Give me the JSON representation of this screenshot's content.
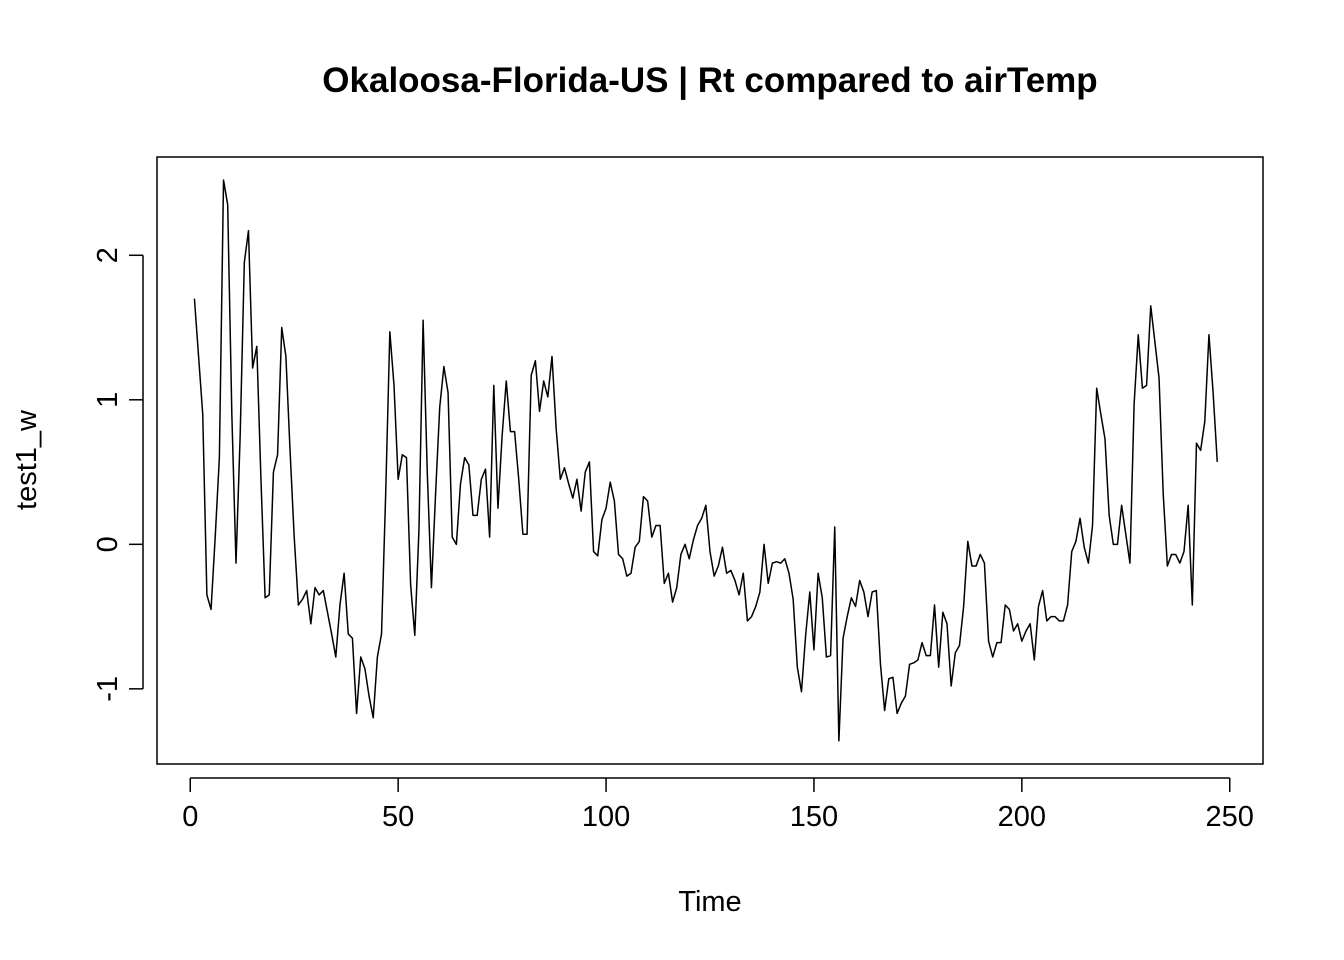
{
  "chart_data": {
    "type": "line",
    "title": "Okaloosa-Florida-US | Rt compared to airTemp",
    "xlabel": "Time",
    "ylabel": "test1_w",
    "xlim": [
      -8,
      258
    ],
    "ylim": [
      -1.52,
      2.68
    ],
    "x_ticks": [
      0,
      50,
      100,
      150,
      200,
      250
    ],
    "x_tick_labels": [
      "0",
      "50",
      "100",
      "150",
      "200",
      "250"
    ],
    "y_ticks": [
      -1,
      0,
      1,
      2
    ],
    "y_tick_labels": [
      "-1",
      "0",
      "1",
      "2"
    ],
    "grid": false,
    "legend": "none",
    "line_color": "#000000",
    "x_start": 1,
    "series": [
      {
        "values": [
          1.7,
          1.3,
          0.9,
          -0.35,
          -0.45,
          0.05,
          0.6,
          2.52,
          2.35,
          0.9,
          -0.13,
          0.75,
          1.95,
          2.17,
          1.22,
          1.37,
          0.45,
          -0.37,
          -0.35,
          0.5,
          0.62,
          1.5,
          1.3,
          0.65,
          0.05,
          -0.42,
          -0.38,
          -0.32,
          -0.55,
          -0.3,
          -0.35,
          -0.32,
          -0.47,
          -0.62,
          -0.78,
          -0.42,
          -0.2,
          -0.62,
          -0.65,
          -1.17,
          -0.78,
          -0.86,
          -1.05,
          -1.2,
          -0.78,
          -0.62,
          0.35,
          1.47,
          1.1,
          0.45,
          0.62,
          0.6,
          -0.28,
          -0.63,
          0.1,
          1.55,
          0.5,
          -0.3,
          0.35,
          0.95,
          1.23,
          1.05,
          0.05,
          0.0,
          0.42,
          0.6,
          0.55,
          0.2,
          0.2,
          0.45,
          0.52,
          0.05,
          1.1,
          0.25,
          0.75,
          1.13,
          0.78,
          0.78,
          0.45,
          0.07,
          0.07,
          1.17,
          1.27,
          0.92,
          1.13,
          1.02,
          1.3,
          0.8,
          0.45,
          0.53,
          0.42,
          0.32,
          0.45,
          0.23,
          0.5,
          0.57,
          -0.05,
          -0.08,
          0.17,
          0.25,
          0.43,
          0.3,
          -0.07,
          -0.1,
          -0.22,
          -0.2,
          -0.02,
          0.02,
          0.33,
          0.3,
          0.05,
          0.13,
          0.13,
          -0.27,
          -0.2,
          -0.4,
          -0.3,
          -0.07,
          0.0,
          -0.1,
          0.03,
          0.13,
          0.18,
          0.27,
          -0.05,
          -0.22,
          -0.15,
          -0.02,
          -0.2,
          -0.18,
          -0.25,
          -0.35,
          -0.2,
          -0.53,
          -0.5,
          -0.43,
          -0.33,
          0.0,
          -0.27,
          -0.13,
          -0.12,
          -0.13,
          -0.1,
          -0.2,
          -0.38,
          -0.85,
          -1.02,
          -0.63,
          -0.33,
          -0.73,
          -0.2,
          -0.37,
          -0.78,
          -0.77,
          0.12,
          -1.36,
          -0.65,
          -0.5,
          -0.37,
          -0.43,
          -0.25,
          -0.33,
          -0.5,
          -0.33,
          -0.32,
          -0.83,
          -1.15,
          -0.93,
          -0.92,
          -1.17,
          -1.1,
          -1.05,
          -0.83,
          -0.82,
          -0.8,
          -0.68,
          -0.77,
          -0.77,
          -0.42,
          -0.85,
          -0.47,
          -0.55,
          -0.98,
          -0.75,
          -0.7,
          -0.43,
          0.02,
          -0.15,
          -0.15,
          -0.07,
          -0.13,
          -0.67,
          -0.78,
          -0.68,
          -0.68,
          -0.42,
          -0.45,
          -0.6,
          -0.55,
          -0.67,
          -0.6,
          -0.55,
          -0.8,
          -0.43,
          -0.32,
          -0.53,
          -0.5,
          -0.5,
          -0.53,
          -0.53,
          -0.42,
          -0.05,
          0.02,
          0.18,
          -0.02,
          -0.13,
          0.13,
          1.08,
          0.9,
          0.73,
          0.2,
          0.0,
          0.0,
          0.27,
          0.07,
          -0.13,
          0.97,
          1.45,
          1.08,
          1.1,
          1.65,
          1.4,
          1.15,
          0.35,
          -0.15,
          -0.07,
          -0.07,
          -0.13,
          -0.05,
          0.27,
          -0.42,
          0.7,
          0.65,
          0.85,
          1.45,
          1.05,
          0.57
        ]
      }
    ]
  }
}
